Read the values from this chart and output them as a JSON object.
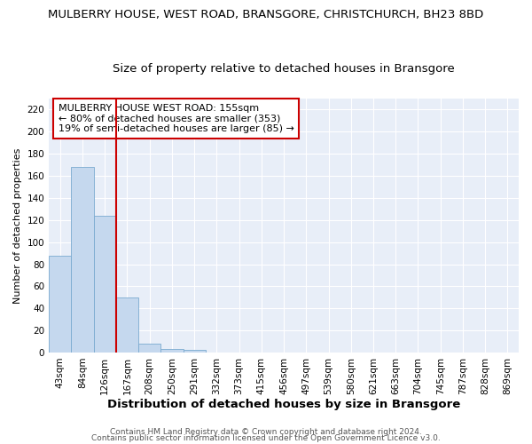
{
  "title": "MULBERRY HOUSE, WEST ROAD, BRANSGORE, CHRISTCHURCH, BH23 8BD",
  "subtitle": "Size of property relative to detached houses in Bransgore",
  "xlabel": "Distribution of detached houses by size in Bransgore",
  "ylabel": "Number of detached properties",
  "categories": [
    "43sqm",
    "84sqm",
    "126sqm",
    "167sqm",
    "208sqm",
    "250sqm",
    "291sqm",
    "332sqm",
    "373sqm",
    "415sqm",
    "456sqm",
    "497sqm",
    "539sqm",
    "580sqm",
    "621sqm",
    "663sqm",
    "704sqm",
    "745sqm",
    "787sqm",
    "828sqm",
    "869sqm"
  ],
  "values": [
    88,
    168,
    124,
    50,
    8,
    3,
    2,
    0,
    0,
    0,
    0,
    0,
    0,
    0,
    0,
    0,
    0,
    0,
    0,
    0,
    0
  ],
  "bar_color": "#c5d8ee",
  "bar_edge_color": "#7aaad0",
  "vline_x": 2.5,
  "vline_color": "#cc0000",
  "annotation_box_text": "MULBERRY HOUSE WEST ROAD: 155sqm\n← 80% of detached houses are smaller (353)\n19% of semi-detached houses are larger (85) →",
  "ylim": [
    0,
    230
  ],
  "yticks": [
    0,
    20,
    40,
    60,
    80,
    100,
    120,
    140,
    160,
    180,
    200,
    220
  ],
  "footer1": "Contains HM Land Registry data © Crown copyright and database right 2024.",
  "footer2": "Contains public sector information licensed under the Open Government Licence v3.0.",
  "fig_bg_color": "#ffffff",
  "ax_bg_color": "#e8eef8",
  "grid_color": "#ffffff",
  "title_fontsize": 9.5,
  "subtitle_fontsize": 9.5,
  "xlabel_fontsize": 9.5,
  "ylabel_fontsize": 8,
  "tick_fontsize": 7.5,
  "footer_fontsize": 6.5,
  "ann_fontsize": 8
}
